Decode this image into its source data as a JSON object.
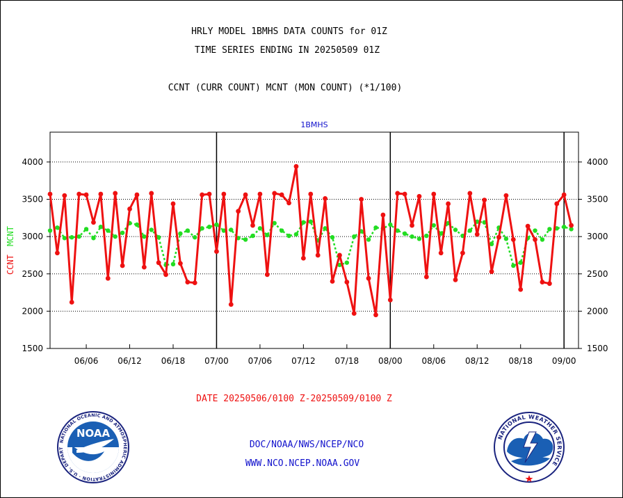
{
  "header": {
    "title1": "HRLY MODEL 1BMHS DATA COUNTS for 01Z",
    "title2": "TIME SERIES ENDING IN 20250509 01Z",
    "subtitle": "CCNT (CURR COUNT) MCNT (MON COUNT) (*1/100)"
  },
  "footer": {
    "date_range": "DATE 20250506/0100 Z-20250509/0100 Z",
    "org": "DOC/NOAA/NWS/NCEP/NCO",
    "url": "WWW.NCO.NCEP.NOAA.GOV"
  },
  "logos": {
    "noaa_text": "NOAA",
    "nws_text": "NATIONAL WEATHER SERVICE"
  },
  "colors": {
    "ccnt": "#ee1111",
    "mcnt": "#22dd22",
    "text_red": "#ee1111",
    "text_blue": "#1111cc",
    "grid": "#000000"
  },
  "chart_data": {
    "type": "line",
    "title": "1BMHS",
    "ylabel_left": "CCNT",
    "ylabel_right": "MCNT",
    "ylim": [
      1500,
      4400
    ],
    "yticks": [
      1500,
      2000,
      2500,
      3000,
      3500,
      4000
    ],
    "xlim": [
      0,
      73
    ],
    "xtick_positions": [
      5,
      11,
      17,
      23,
      29,
      35,
      41,
      47,
      53,
      59,
      65,
      71
    ],
    "xtick_labels": [
      "06/06",
      "06/12",
      "06/18",
      "07/00",
      "07/06",
      "07/12",
      "07/18",
      "08/00",
      "08/06",
      "08/12",
      "08/18",
      "09/00"
    ],
    "day_boundaries": [
      23,
      47,
      71
    ],
    "grid": "horizontal dotted",
    "series": [
      {
        "name": "CCNT",
        "values": [
          3570,
          2780,
          3550,
          2120,
          3570,
          3560,
          3190,
          3570,
          2440,
          3580,
          2610,
          3370,
          3560,
          2590,
          3580,
          2650,
          2490,
          3440,
          2640,
          2390,
          2380,
          3560,
          3570,
          2800,
          3570,
          2090,
          3340,
          3560,
          3150,
          3570,
          2490,
          3580,
          3560,
          3450,
          3940,
          2710,
          3570,
          2750,
          3510,
          2400,
          2750,
          2390,
          1970,
          3500,
          2440,
          1950,
          3290,
          2150,
          3580,
          3570,
          3150,
          3540,
          2460,
          3570,
          2780,
          3440,
          2420,
          2780,
          3580,
          3030,
          3490,
          2530,
          2990,
          3550,
          2960,
          2290,
          3140,
          2960,
          2390,
          2370,
          3440,
          3560,
          3150
        ]
      },
      {
        "name": "MCNT",
        "values": [
          3080,
          3120,
          2980,
          2990,
          3000,
          3100,
          2980,
          3130,
          3080,
          3000,
          3050,
          3180,
          3160,
          3000,
          3090,
          2990,
          2620,
          2630,
          3040,
          3080,
          2990,
          3110,
          3130,
          3160,
          3080,
          3090,
          2980,
          2960,
          3010,
          3110,
          3020,
          3180,
          3080,
          3010,
          3030,
          3190,
          3200,
          2950,
          3110,
          2990,
          2620,
          2650,
          3000,
          3070,
          2960,
          3120,
          3110,
          3160,
          3080,
          3040,
          3000,
          2970,
          3010,
          3150,
          3040,
          3180,
          3090,
          3010,
          3080,
          3200,
          3190,
          2900,
          3120,
          2970,
          2610,
          2650,
          2980,
          3080,
          2960,
          3100,
          3110,
          3130,
          3100
        ]
      }
    ]
  }
}
